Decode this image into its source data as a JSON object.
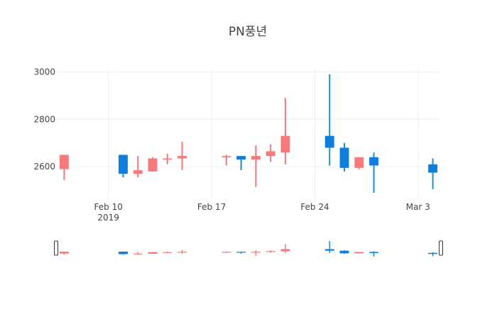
{
  "chart_data": {
    "type": "candlestick",
    "title": "PN풍년",
    "xlabel": "",
    "ylabel": "",
    "x_ticks": [
      {
        "date": "2019-02-10",
        "label": "Feb 10",
        "sublabel": "2019"
      },
      {
        "date": "2019-02-17",
        "label": "Feb 17",
        "sublabel": ""
      },
      {
        "date": "2019-02-24",
        "label": "Feb 24",
        "sublabel": ""
      },
      {
        "date": "2019-03-03",
        "label": "Mar 3",
        "sublabel": ""
      }
    ],
    "y_ticks": [
      2600,
      2800,
      3000
    ],
    "ylim": [
      2460,
      3010
    ],
    "xlim": [
      "2019-02-06T12:00",
      "2019-03-04T12:00"
    ],
    "grid": true,
    "range_slider": true,
    "increasing_color": "#f6797b",
    "decreasing_color": "#0e7ddd",
    "decreasing_wick_color": "#1f90c8",
    "ohlc": [
      {
        "date": "2019-02-07",
        "open": 2590,
        "high": 2650,
        "low": 2545,
        "close": 2650
      },
      {
        "date": "2019-02-11",
        "open": 2650,
        "high": 2650,
        "low": 2555,
        "close": 2570
      },
      {
        "date": "2019-02-12",
        "open": 2570,
        "high": 2645,
        "low": 2555,
        "close": 2585
      },
      {
        "date": "2019-02-13",
        "open": 2580,
        "high": 2640,
        "low": 2580,
        "close": 2635
      },
      {
        "date": "2019-02-14",
        "open": 2630,
        "high": 2655,
        "low": 2610,
        "close": 2635
      },
      {
        "date": "2019-02-15",
        "open": 2635,
        "high": 2705,
        "low": 2585,
        "close": 2645
      },
      {
        "date": "2019-02-18",
        "open": 2640,
        "high": 2650,
        "low": 2605,
        "close": 2645
      },
      {
        "date": "2019-02-19",
        "open": 2645,
        "high": 2645,
        "low": 2585,
        "close": 2630
      },
      {
        "date": "2019-02-20",
        "open": 2630,
        "high": 2690,
        "low": 2515,
        "close": 2645
      },
      {
        "date": "2019-02-21",
        "open": 2645,
        "high": 2695,
        "low": 2620,
        "close": 2665
      },
      {
        "date": "2019-02-22",
        "open": 2660,
        "high": 2890,
        "low": 2610,
        "close": 2730
      },
      {
        "date": "2019-02-25",
        "open": 2730,
        "high": 2990,
        "low": 2605,
        "close": 2680
      },
      {
        "date": "2019-02-26",
        "open": 2680,
        "high": 2700,
        "low": 2580,
        "close": 2595
      },
      {
        "date": "2019-02-27",
        "open": 2595,
        "high": 2640,
        "low": 2590,
        "close": 2640
      },
      {
        "date": "2019-02-28",
        "open": 2640,
        "high": 2660,
        "low": 2490,
        "close": 2605
      },
      {
        "date": "2019-03-04",
        "open": 2610,
        "high": 2635,
        "low": 2505,
        "close": 2575
      }
    ]
  }
}
